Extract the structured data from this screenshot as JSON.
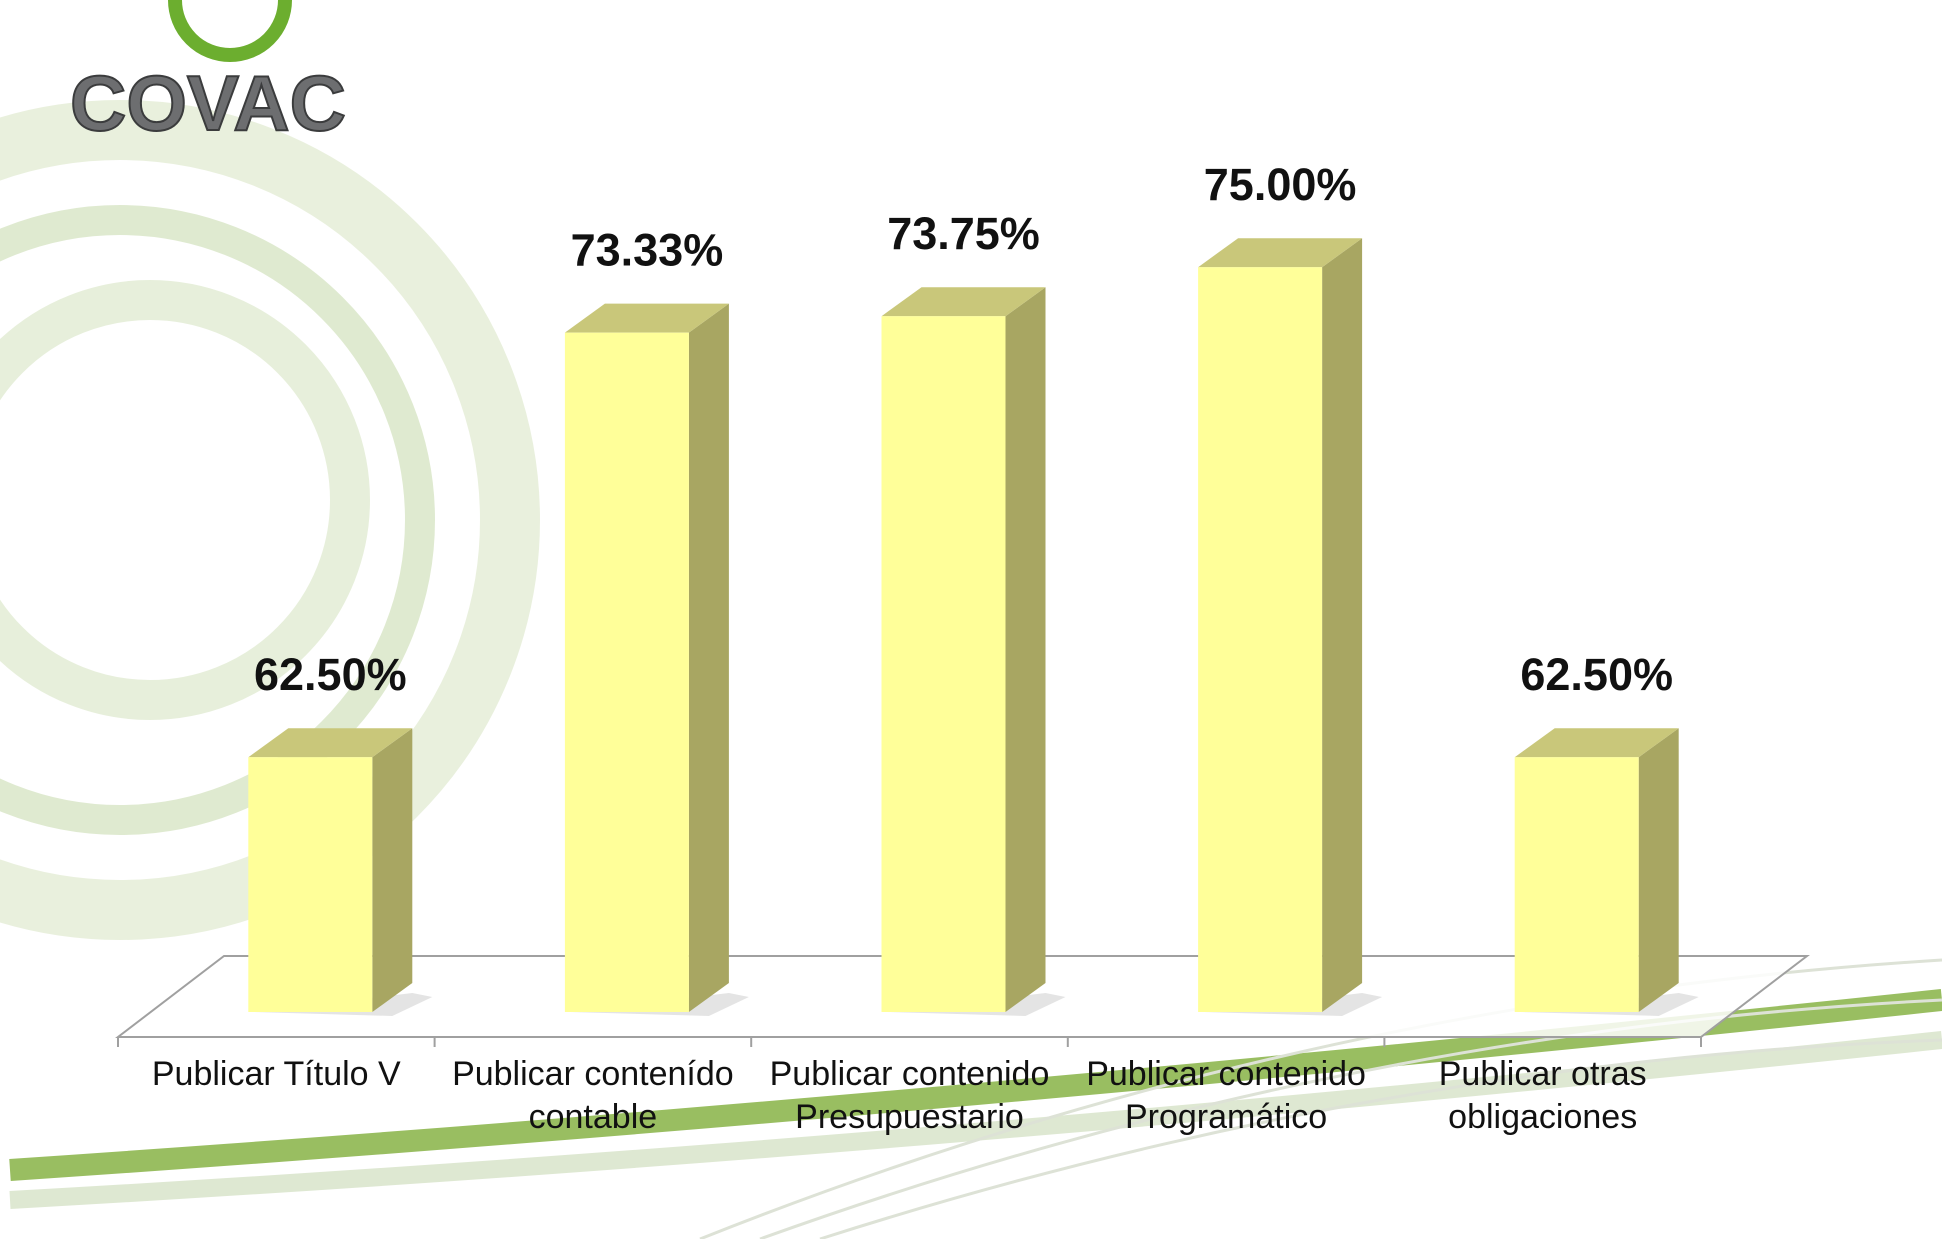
{
  "logo": "COVAC",
  "chart_data": {
    "type": "bar3d",
    "categories": [
      "Publicar Título V",
      "Publicar contenído contable",
      "Publicar contenido Presupuestario",
      "Publicar contenido Programático",
      "Publicar otras obligaciones"
    ],
    "values": [
      62.5,
      73.33,
      73.75,
      75,
      62.5
    ],
    "value_labels": [
      "62.50%",
      "73.33%",
      "73.75%",
      "75.00%",
      "62.50%"
    ],
    "color": "#ffff99",
    "ylim": [
      56,
      76
    ]
  }
}
